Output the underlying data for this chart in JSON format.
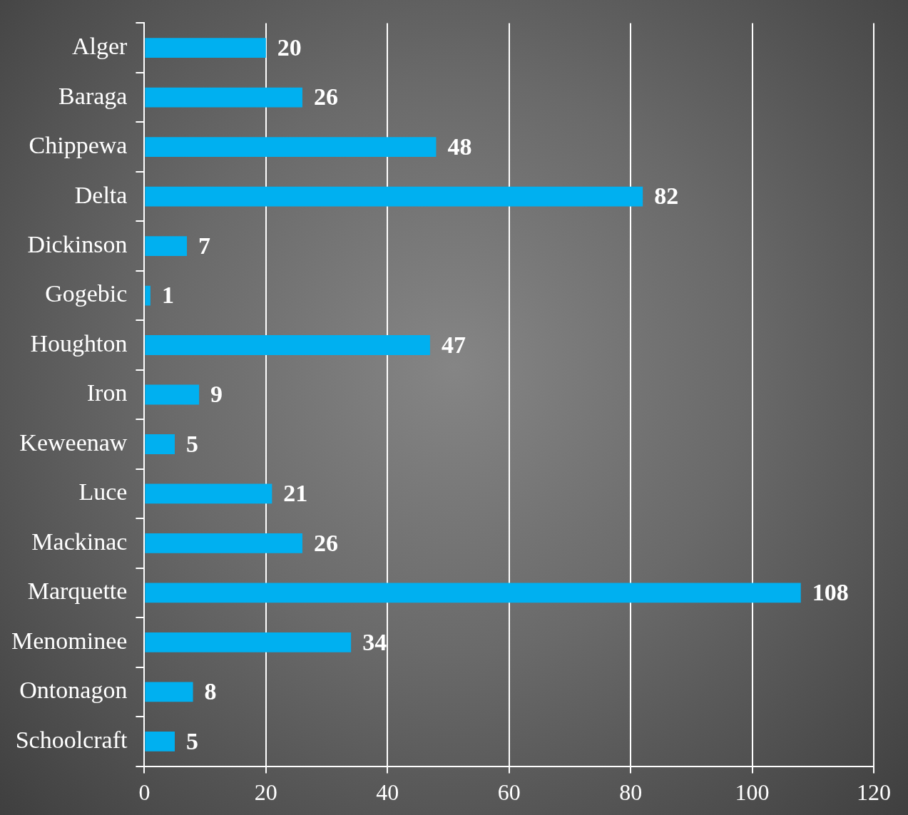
{
  "chart_data": {
    "type": "bar",
    "orientation": "horizontal",
    "categories": [
      "Alger",
      "Baraga",
      "Chippewa",
      "Delta",
      "Dickinson",
      "Gogebic",
      "Houghton",
      "Iron",
      "Keweenaw",
      "Luce",
      "Mackinac",
      "Marquette",
      "Menominee",
      "Ontonagon",
      "Schoolcraft"
    ],
    "values": [
      20,
      26,
      48,
      82,
      7,
      1,
      47,
      9,
      5,
      21,
      26,
      108,
      34,
      8,
      5
    ],
    "color": "#00b0f0",
    "xlim": [
      0,
      120
    ],
    "xticks": [
      0,
      20,
      40,
      60,
      80,
      100,
      120
    ],
    "grid": "x",
    "data_labels": true,
    "legend": false
  }
}
